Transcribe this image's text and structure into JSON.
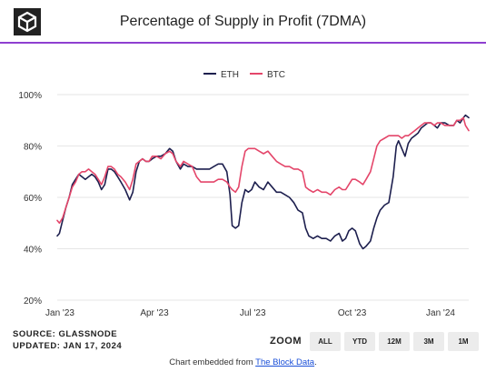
{
  "header": {
    "title": "Percentage of Supply in Profit (7DMA)"
  },
  "footer": {
    "source": "SOURCE: GLASSNODE",
    "updated": "UPDATED: JAN 17, 2024",
    "zoom_label": "ZOOM",
    "zoom_buttons": [
      "ALL",
      "YTD",
      "12M",
      "3M",
      "1M"
    ],
    "embed_prefix": "Chart embedded from ",
    "embed_link": "The Block Data",
    "embed_suffix": "."
  },
  "colors": {
    "accent": "#8e3fd0",
    "eth": "#1d1f4e",
    "btc": "#e4466a",
    "grid": "#e6e6e6"
  },
  "chart_data": {
    "type": "line",
    "title": "Percentage of Supply in Profit (7DMA)",
    "xlabel": "",
    "ylabel": "",
    "ylim": [
      20,
      100
    ],
    "x_range": [
      "2023-01-01",
      "2024-01-17"
    ],
    "y_ticks": [
      "100%",
      "80%",
      "60%",
      "40%",
      "20%"
    ],
    "y_tick_values": [
      100,
      80,
      60,
      40,
      20
    ],
    "x_ticks": [
      {
        "label": "Jan '23",
        "date": "2023-01-01"
      },
      {
        "label": "Apr '23",
        "date": "2023-04-01"
      },
      {
        "label": "Jul '23",
        "date": "2023-07-01"
      },
      {
        "label": "Oct '23",
        "date": "2023-10-01"
      },
      {
        "label": "Jan '24",
        "date": "2024-01-01"
      }
    ],
    "grid": true,
    "legend_position": "top-center",
    "series": [
      {
        "name": "ETH",
        "color": "#1d1f4e",
        "points": [
          [
            "2023-01-01",
            45
          ],
          [
            "2023-01-03",
            46
          ],
          [
            "2023-01-06",
            51
          ],
          [
            "2023-01-09",
            56
          ],
          [
            "2023-01-12",
            60
          ],
          [
            "2023-01-15",
            65
          ],
          [
            "2023-01-18",
            67
          ],
          [
            "2023-01-21",
            69
          ],
          [
            "2023-01-24",
            68
          ],
          [
            "2023-01-27",
            67
          ],
          [
            "2023-01-30",
            68
          ],
          [
            "2023-02-02",
            69
          ],
          [
            "2023-02-05",
            68
          ],
          [
            "2023-02-08",
            66
          ],
          [
            "2023-02-11",
            63
          ],
          [
            "2023-02-14",
            65
          ],
          [
            "2023-02-17",
            71
          ],
          [
            "2023-02-20",
            71
          ],
          [
            "2023-02-23",
            70
          ],
          [
            "2023-02-26",
            68
          ],
          [
            "2023-03-01",
            66
          ],
          [
            "2023-03-05",
            63
          ],
          [
            "2023-03-09",
            59
          ],
          [
            "2023-03-12",
            62
          ],
          [
            "2023-03-15",
            70
          ],
          [
            "2023-03-18",
            74
          ],
          [
            "2023-03-21",
            75
          ],
          [
            "2023-03-24",
            74
          ],
          [
            "2023-03-27",
            74
          ],
          [
            "2023-03-30",
            75
          ],
          [
            "2023-04-03",
            76
          ],
          [
            "2023-04-07",
            76
          ],
          [
            "2023-04-11",
            77
          ],
          [
            "2023-04-15",
            79
          ],
          [
            "2023-04-18",
            78
          ],
          [
            "2023-04-21",
            74
          ],
          [
            "2023-04-25",
            71
          ],
          [
            "2023-04-28",
            73
          ],
          [
            "2023-05-02",
            72
          ],
          [
            "2023-05-06",
            72
          ],
          [
            "2023-05-10",
            71
          ],
          [
            "2023-05-14",
            71
          ],
          [
            "2023-05-18",
            71
          ],
          [
            "2023-05-22",
            71
          ],
          [
            "2023-05-26",
            72
          ],
          [
            "2023-05-30",
            73
          ],
          [
            "2023-06-03",
            73
          ],
          [
            "2023-06-07",
            70
          ],
          [
            "2023-06-10",
            61
          ],
          [
            "2023-06-12",
            49
          ],
          [
            "2023-06-15",
            48
          ],
          [
            "2023-06-18",
            49
          ],
          [
            "2023-06-21",
            58
          ],
          [
            "2023-06-24",
            63
          ],
          [
            "2023-06-27",
            62
          ],
          [
            "2023-06-30",
            63
          ],
          [
            "2023-07-03",
            66
          ],
          [
            "2023-07-07",
            64
          ],
          [
            "2023-07-11",
            63
          ],
          [
            "2023-07-15",
            66
          ],
          [
            "2023-07-19",
            64
          ],
          [
            "2023-07-23",
            62
          ],
          [
            "2023-07-27",
            62
          ],
          [
            "2023-07-31",
            61
          ],
          [
            "2023-08-04",
            60
          ],
          [
            "2023-08-08",
            58
          ],
          [
            "2023-08-12",
            55
          ],
          [
            "2023-08-16",
            54
          ],
          [
            "2023-08-19",
            48
          ],
          [
            "2023-08-22",
            45
          ],
          [
            "2023-08-26",
            44
          ],
          [
            "2023-08-30",
            45
          ],
          [
            "2023-09-03",
            44
          ],
          [
            "2023-09-07",
            44
          ],
          [
            "2023-09-11",
            43
          ],
          [
            "2023-09-15",
            45
          ],
          [
            "2023-09-19",
            46
          ],
          [
            "2023-09-22",
            43
          ],
          [
            "2023-09-25",
            44
          ],
          [
            "2023-09-28",
            47
          ],
          [
            "2023-10-01",
            48
          ],
          [
            "2023-10-04",
            47
          ],
          [
            "2023-10-08",
            42
          ],
          [
            "2023-10-11",
            40
          ],
          [
            "2023-10-14",
            41
          ],
          [
            "2023-10-18",
            43
          ],
          [
            "2023-10-21",
            48
          ],
          [
            "2023-10-24",
            52
          ],
          [
            "2023-10-27",
            55
          ],
          [
            "2023-10-31",
            57
          ],
          [
            "2023-11-04",
            58
          ],
          [
            "2023-11-08",
            68
          ],
          [
            "2023-11-11",
            80
          ],
          [
            "2023-11-13",
            82
          ],
          [
            "2023-11-16",
            79
          ],
          [
            "2023-11-19",
            76
          ],
          [
            "2023-11-22",
            81
          ],
          [
            "2023-11-25",
            83
          ],
          [
            "2023-11-28",
            84
          ],
          [
            "2023-12-01",
            85
          ],
          [
            "2023-12-04",
            87
          ],
          [
            "2023-12-07",
            88
          ],
          [
            "2023-12-10",
            89
          ],
          [
            "2023-12-13",
            89
          ],
          [
            "2023-12-16",
            88
          ],
          [
            "2023-12-19",
            87
          ],
          [
            "2023-12-22",
            89
          ],
          [
            "2023-12-26",
            89
          ],
          [
            "2023-12-30",
            88
          ],
          [
            "2024-01-03",
            88
          ],
          [
            "2024-01-06",
            90
          ],
          [
            "2024-01-09",
            89
          ],
          [
            "2024-01-12",
            91
          ],
          [
            "2024-01-14",
            92
          ],
          [
            "2024-01-17",
            91
          ]
        ]
      },
      {
        "name": "BTC",
        "color": "#e4466a",
        "points": [
          [
            "2023-01-01",
            51
          ],
          [
            "2023-01-03",
            50
          ],
          [
            "2023-01-06",
            52
          ],
          [
            "2023-01-09",
            56
          ],
          [
            "2023-01-12",
            60
          ],
          [
            "2023-01-15",
            64
          ],
          [
            "2023-01-18",
            66
          ],
          [
            "2023-01-21",
            69
          ],
          [
            "2023-01-24",
            70
          ],
          [
            "2023-01-27",
            70
          ],
          [
            "2023-01-30",
            71
          ],
          [
            "2023-02-02",
            70
          ],
          [
            "2023-02-05",
            69
          ],
          [
            "2023-02-08",
            67
          ],
          [
            "2023-02-11",
            65
          ],
          [
            "2023-02-14",
            68
          ],
          [
            "2023-02-17",
            72
          ],
          [
            "2023-02-20",
            72
          ],
          [
            "2023-02-23",
            71
          ],
          [
            "2023-02-26",
            69
          ],
          [
            "2023-03-01",
            68
          ],
          [
            "2023-03-05",
            66
          ],
          [
            "2023-03-09",
            63
          ],
          [
            "2023-03-12",
            67
          ],
          [
            "2023-03-15",
            73
          ],
          [
            "2023-03-18",
            74
          ],
          [
            "2023-03-21",
            75
          ],
          [
            "2023-03-24",
            74
          ],
          [
            "2023-03-27",
            74
          ],
          [
            "2023-03-30",
            76
          ],
          [
            "2023-04-03",
            76
          ],
          [
            "2023-04-07",
            75
          ],
          [
            "2023-04-11",
            77
          ],
          [
            "2023-04-15",
            78
          ],
          [
            "2023-04-18",
            77
          ],
          [
            "2023-04-21",
            74
          ],
          [
            "2023-04-25",
            72
          ],
          [
            "2023-04-28",
            74
          ],
          [
            "2023-05-02",
            73
          ],
          [
            "2023-05-06",
            72
          ],
          [
            "2023-05-10",
            68
          ],
          [
            "2023-05-14",
            66
          ],
          [
            "2023-05-18",
            66
          ],
          [
            "2023-05-22",
            66
          ],
          [
            "2023-05-26",
            66
          ],
          [
            "2023-05-30",
            67
          ],
          [
            "2023-06-03",
            67
          ],
          [
            "2023-06-07",
            66
          ],
          [
            "2023-06-10",
            64
          ],
          [
            "2023-06-12",
            63
          ],
          [
            "2023-06-15",
            62
          ],
          [
            "2023-06-18",
            64
          ],
          [
            "2023-06-21",
            72
          ],
          [
            "2023-06-24",
            78
          ],
          [
            "2023-06-27",
            79
          ],
          [
            "2023-06-30",
            79
          ],
          [
            "2023-07-03",
            79
          ],
          [
            "2023-07-07",
            78
          ],
          [
            "2023-07-11",
            77
          ],
          [
            "2023-07-15",
            78
          ],
          [
            "2023-07-19",
            76
          ],
          [
            "2023-07-23",
            74
          ],
          [
            "2023-07-27",
            73
          ],
          [
            "2023-07-31",
            72
          ],
          [
            "2023-08-04",
            72
          ],
          [
            "2023-08-08",
            71
          ],
          [
            "2023-08-12",
            71
          ],
          [
            "2023-08-16",
            70
          ],
          [
            "2023-08-19",
            64
          ],
          [
            "2023-08-22",
            63
          ],
          [
            "2023-08-26",
            62
          ],
          [
            "2023-08-30",
            63
          ],
          [
            "2023-09-03",
            62
          ],
          [
            "2023-09-07",
            62
          ],
          [
            "2023-09-11",
            61
          ],
          [
            "2023-09-15",
            63
          ],
          [
            "2023-09-19",
            64
          ],
          [
            "2023-09-22",
            63
          ],
          [
            "2023-09-25",
            63
          ],
          [
            "2023-09-28",
            65
          ],
          [
            "2023-10-01",
            67
          ],
          [
            "2023-10-04",
            67
          ],
          [
            "2023-10-08",
            66
          ],
          [
            "2023-10-11",
            65
          ],
          [
            "2023-10-14",
            67
          ],
          [
            "2023-10-18",
            70
          ],
          [
            "2023-10-21",
            75
          ],
          [
            "2023-10-24",
            80
          ],
          [
            "2023-10-27",
            82
          ],
          [
            "2023-10-31",
            83
          ],
          [
            "2023-11-04",
            84
          ],
          [
            "2023-11-08",
            84
          ],
          [
            "2023-11-11",
            84
          ],
          [
            "2023-11-13",
            84
          ],
          [
            "2023-11-16",
            83
          ],
          [
            "2023-11-19",
            84
          ],
          [
            "2023-11-22",
            84
          ],
          [
            "2023-11-25",
            85
          ],
          [
            "2023-11-28",
            86
          ],
          [
            "2023-12-01",
            87
          ],
          [
            "2023-12-04",
            88
          ],
          [
            "2023-12-07",
            89
          ],
          [
            "2023-12-10",
            89
          ],
          [
            "2023-12-13",
            89
          ],
          [
            "2023-12-16",
            88
          ],
          [
            "2023-12-19",
            89
          ],
          [
            "2023-12-22",
            89
          ],
          [
            "2023-12-26",
            88
          ],
          [
            "2023-12-30",
            88
          ],
          [
            "2024-01-03",
            88
          ],
          [
            "2024-01-06",
            90
          ],
          [
            "2024-01-09",
            90
          ],
          [
            "2024-01-12",
            91
          ],
          [
            "2024-01-14",
            88
          ],
          [
            "2024-01-17",
            86
          ]
        ]
      }
    ]
  }
}
